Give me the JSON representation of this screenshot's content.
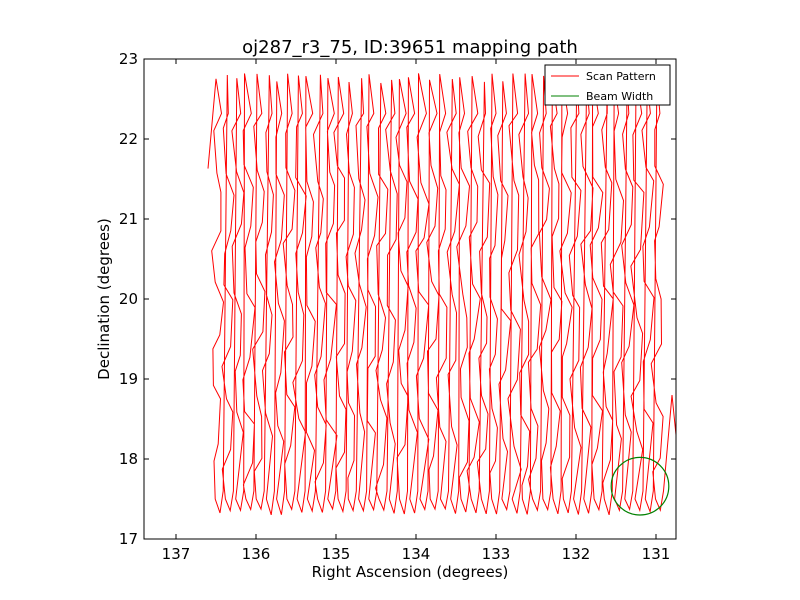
{
  "chart_data": {
    "type": "line",
    "title": "oj287_r3_75, ID:39651 mapping path",
    "xlabel": "Right Ascension (degrees)",
    "ylabel": "Declination (degrees)",
    "xlim": [
      137.4,
      130.75
    ],
    "ylim": [
      17,
      23
    ],
    "x_ticks": [
      137,
      136,
      135,
      134,
      133,
      132,
      131
    ],
    "y_ticks": [
      17,
      18,
      19,
      20,
      21,
      22,
      23
    ],
    "x_tick_labels": [
      "137",
      "136",
      "135",
      "134",
      "133",
      "132",
      "131"
    ],
    "y_tick_labels": [
      "17",
      "18",
      "19",
      "20",
      "21",
      "22",
      "23"
    ],
    "grid": false,
    "legend_position": "top-right",
    "colors": {
      "scan": "#ff0000",
      "beam": "#008000"
    },
    "scan_pattern": {
      "name": "Scan Pattern",
      "ra_start": 136.48,
      "ra_step": -0.128,
      "count": 44,
      "dec_bottom": 17.5,
      "dec_top": 22.82,
      "entry_point": [
        136.6,
        21.63
      ]
    },
    "beam_width": {
      "name": "Beam Width",
      "center": [
        131.2,
        17.66
      ],
      "radius_deg": 0.36
    }
  }
}
